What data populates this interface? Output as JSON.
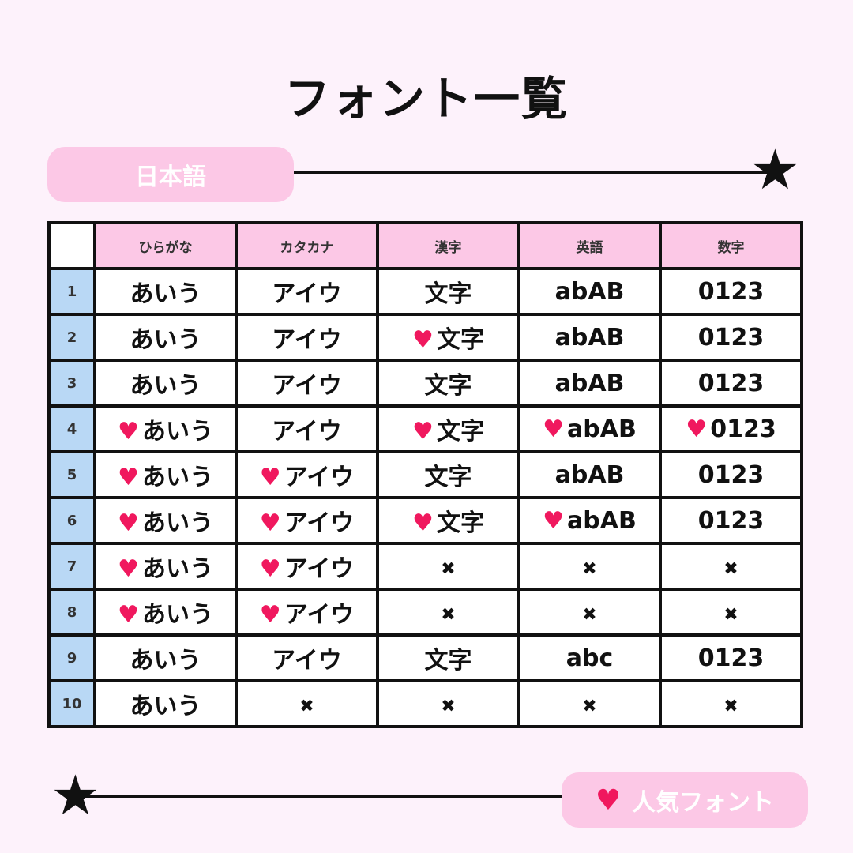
{
  "title": "フォント一覧",
  "section_label": "日本語",
  "legend_label": "人気フォント",
  "colors": {
    "background": "#fdf2fb",
    "pink": "#fcc8e6",
    "blue": "#b9d8f5",
    "heart": "#f0185e"
  },
  "columns": [
    "ひらがな",
    "カタカナ",
    "漢字",
    "英語",
    "数字"
  ],
  "rows": [
    {
      "num": "1",
      "cells": [
        {
          "t": "あいう",
          "h": false
        },
        {
          "t": "アイウ",
          "h": false
        },
        {
          "t": "文字",
          "h": false
        },
        {
          "t": "abAB",
          "h": false
        },
        {
          "t": "0123",
          "h": false
        }
      ]
    },
    {
      "num": "2",
      "cells": [
        {
          "t": "あいう",
          "h": false
        },
        {
          "t": "アイウ",
          "h": false
        },
        {
          "t": "文字",
          "h": true
        },
        {
          "t": "abAB",
          "h": false
        },
        {
          "t": "0123",
          "h": false
        }
      ]
    },
    {
      "num": "3",
      "cells": [
        {
          "t": "あいう",
          "h": false
        },
        {
          "t": "アイウ",
          "h": false
        },
        {
          "t": "文字",
          "h": false
        },
        {
          "t": "abAB",
          "h": false
        },
        {
          "t": "0123",
          "h": false
        }
      ]
    },
    {
      "num": "4",
      "cells": [
        {
          "t": "あいう",
          "h": true
        },
        {
          "t": "アイウ",
          "h": false
        },
        {
          "t": "文字",
          "h": true
        },
        {
          "t": "abAB",
          "h": true
        },
        {
          "t": "0123",
          "h": true
        }
      ]
    },
    {
      "num": "5",
      "cells": [
        {
          "t": "あいう",
          "h": true
        },
        {
          "t": "アイウ",
          "h": true
        },
        {
          "t": "文字",
          "h": false
        },
        {
          "t": "abAB",
          "h": false
        },
        {
          "t": "0123",
          "h": false
        }
      ]
    },
    {
      "num": "6",
      "cells": [
        {
          "t": "あいう",
          "h": true
        },
        {
          "t": "アイウ",
          "h": true
        },
        {
          "t": "文字",
          "h": true
        },
        {
          "t": "abAB",
          "h": true
        },
        {
          "t": "0123",
          "h": false
        }
      ]
    },
    {
      "num": "7",
      "cells": [
        {
          "t": "あいう",
          "h": true
        },
        {
          "t": "アイウ",
          "h": true
        },
        {
          "t": "✖",
          "h": false
        },
        {
          "t": "✖",
          "h": false
        },
        {
          "t": "✖",
          "h": false
        }
      ]
    },
    {
      "num": "8",
      "cells": [
        {
          "t": "あいう",
          "h": true
        },
        {
          "t": "アイウ",
          "h": true
        },
        {
          "t": "✖",
          "h": false
        },
        {
          "t": "✖",
          "h": false
        },
        {
          "t": "✖",
          "h": false
        }
      ]
    },
    {
      "num": "9",
      "cells": [
        {
          "t": "あいう",
          "h": false
        },
        {
          "t": "アイウ",
          "h": false
        },
        {
          "t": "文字",
          "h": false
        },
        {
          "t": "abc",
          "h": false
        },
        {
          "t": "0123",
          "h": false
        }
      ]
    },
    {
      "num": "10",
      "cells": [
        {
          "t": "あいう",
          "h": false
        },
        {
          "t": "✖",
          "h": false
        },
        {
          "t": "✖",
          "h": false
        },
        {
          "t": "✖",
          "h": false
        },
        {
          "t": "✖",
          "h": false
        }
      ]
    }
  ]
}
